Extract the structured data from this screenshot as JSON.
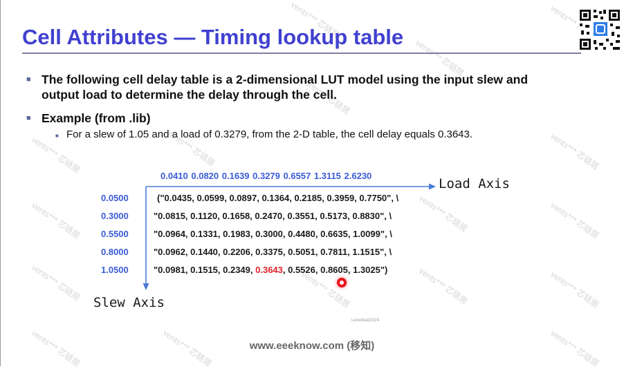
{
  "slide": {
    "title": "Cell Attributes — Timing lookup table",
    "bullets": [
      {
        "text_line1": "The following cell delay table is a 2-dimensional LUT model using the input slew and",
        "text_line2": "output load to determine the delay through the cell."
      },
      {
        "text": "Example (from .lib)"
      }
    ],
    "sub_bullet": "For a slew of 1.05 and a load of 0.3279, from the 2-D table, the cell delay equals 0.3643."
  },
  "table": {
    "load_values": "0.0410  0.0820  0.1639  0.3279  0.6557  1.3115  2.6230",
    "load_axis_label": "Load Axis",
    "slew_axis_label": "Slew Axis",
    "slew_values": [
      "0.0500",
      "0.3000",
      "0.5500",
      "0.8000",
      "1.0500"
    ],
    "rows": [
      "(\"0.0435, 0.0599, 0.0897, 0.1364, 0.2185, 0.3959, 0.7750\", \\",
      "\"0.0815, 0.1120, 0.1658, 0.2470, 0.3551, 0.5173, 0.8830\", \\",
      "\"0.0964, 0.1331, 0.1983, 0.3000, 0.4480, 0.6635, 1.0099\", \\",
      "\"0.0962, 0.1440, 0.2206, 0.3375, 0.5051, 0.7811, 1.1515\", \\"
    ],
    "last_row": {
      "before": "\"0.0981, 0.1515, 0.2349, ",
      "highlight": "0.3643",
      "after": ", 0.5526, 0.8605, 1.3025\")"
    },
    "highlight_color": "#e0202a",
    "header_color": "#3a5bd6"
  },
  "stamp": "Leveitsel2024",
  "footer": "www.eeeknow.com (移知)",
  "watermark": "vents*** 芯链居",
  "colors": {
    "title": "#4040d0",
    "bullet": "#5b6b9b"
  },
  "icons": {
    "qr": "qr-code-icon",
    "cursor": "pointer-dot-icon"
  }
}
